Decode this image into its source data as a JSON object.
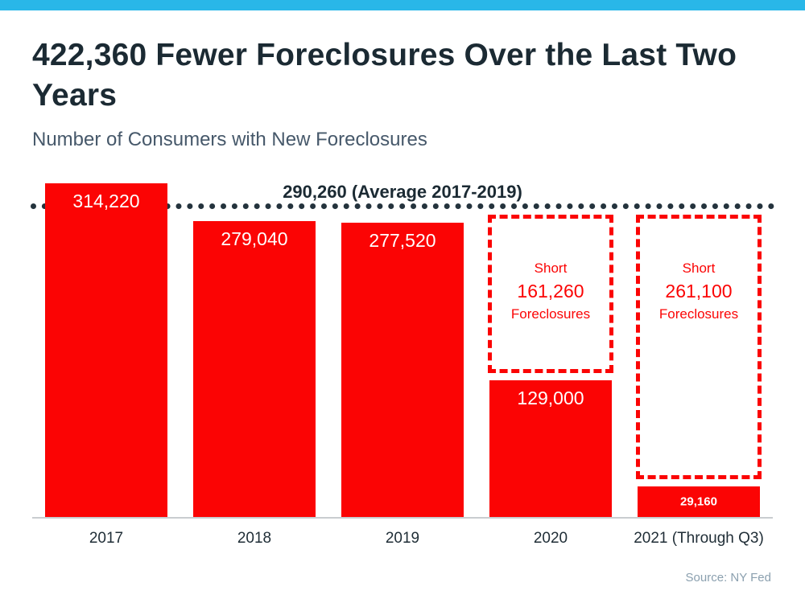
{
  "header": {
    "title": "422,360 Fewer Foreclosures Over the Last Two Years",
    "subtitle": "Number of Consumers with New Foreclosures"
  },
  "footer": {
    "source": "Source: NY Fed"
  },
  "colors": {
    "accent": "#29b7e8",
    "bar": "#fb0404",
    "avg_line": "#24333d"
  },
  "chart_data": {
    "type": "bar",
    "title": "422,360 Fewer Foreclosures Over the Last Two Years",
    "subtitle": "Number of Consumers with New Foreclosures",
    "categories": [
      "2017",
      "2018",
      "2019",
      "2020",
      "2021 (Through Q3)"
    ],
    "values": [
      314220,
      279040,
      277520,
      129000,
      29160
    ],
    "value_labels": [
      "314,220",
      "279,040",
      "277,520",
      "129,000",
      "29,160"
    ],
    "average_line": {
      "value": 290260,
      "label": "290,260 (Average 2017-2019)"
    },
    "shortfalls": [
      {
        "category_index": 3,
        "label_top": "Short",
        "value_label": "161,260",
        "label_bottom": "Foreclosures"
      },
      {
        "category_index": 4,
        "label_top": "Short",
        "value_label": "261,100",
        "label_bottom": "Foreclosures"
      }
    ],
    "xlabel": "",
    "ylabel": "Number of Consumers with New Foreclosures",
    "ylim": [
      0,
      316000
    ],
    "grid": false,
    "legend": false,
    "source": "NY Fed"
  }
}
